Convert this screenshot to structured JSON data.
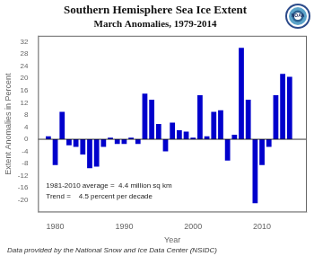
{
  "chart_data": {
    "type": "bar",
    "title": "Southern Hemisphere Sea Ice Extent",
    "subtitle": "March Anomalies, 1979-2014",
    "xlabel": "Year",
    "ylabel": "Extent Anomalies in Percent",
    "annotations": [
      "1981-2010 average =  4.4 million sq km",
      "Trend =    4.5 percent per decade"
    ],
    "footnote": "Data provided by the National Snow and Ice Data Center (NSIDC)",
    "logo_text": "NOAA",
    "x": [
      1979,
      1980,
      1981,
      1982,
      1983,
      1984,
      1985,
      1986,
      1987,
      1988,
      1989,
      1990,
      1991,
      1992,
      1993,
      1994,
      1995,
      1996,
      1997,
      1998,
      1999,
      2000,
      2001,
      2002,
      2003,
      2004,
      2005,
      2006,
      2007,
      2008,
      2009,
      2010,
      2011,
      2012,
      2013,
      2014
    ],
    "values": [
      1.0,
      -8.5,
      9.0,
      -2.0,
      -2.5,
      -5.0,
      -9.5,
      -9.0,
      -2.5,
      0.5,
      -1.5,
      -1.5,
      0.5,
      -1.5,
      15.0,
      13.0,
      5.0,
      -4.0,
      5.5,
      3.0,
      2.5,
      0.5,
      14.5,
      1.0,
      9.0,
      9.5,
      -7.0,
      1.5,
      30.0,
      13.0,
      -21.0,
      -8.5,
      -2.5,
      14.5,
      21.5,
      20.5
    ],
    "color": "#0000CC",
    "xlim": [
      1977.5,
      2016.5
    ],
    "xticks": [
      1980,
      1990,
      2000,
      2010
    ],
    "ylim": [
      -24,
      34
    ],
    "yticks": [
      -20,
      -16,
      -12,
      -8,
      -4,
      0,
      4,
      8,
      12,
      16,
      20,
      24,
      28,
      32
    ],
    "grid": false
  }
}
